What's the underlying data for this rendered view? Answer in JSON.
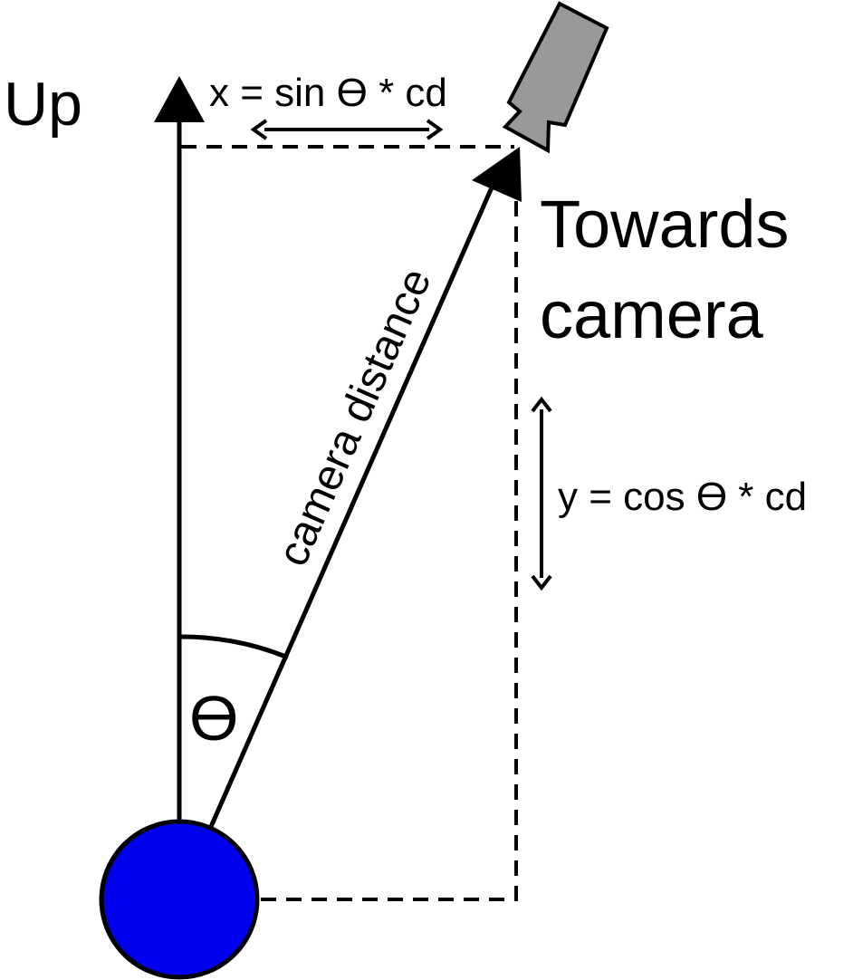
{
  "labels": {
    "up": "Up",
    "towards_line1": "Towards",
    "towards_line2": "camera",
    "x_formula": "x = sin ϴ * cd",
    "y_formula": "y = cos ϴ * cd",
    "camera_distance": "camera distance",
    "theta": "ϴ"
  },
  "colors": {
    "ball_fill": "#0000ee",
    "camera_fill": "#999999",
    "stroke": "#000000"
  },
  "icons": {
    "camera": "camera-icon",
    "subject": "subject-ball"
  }
}
